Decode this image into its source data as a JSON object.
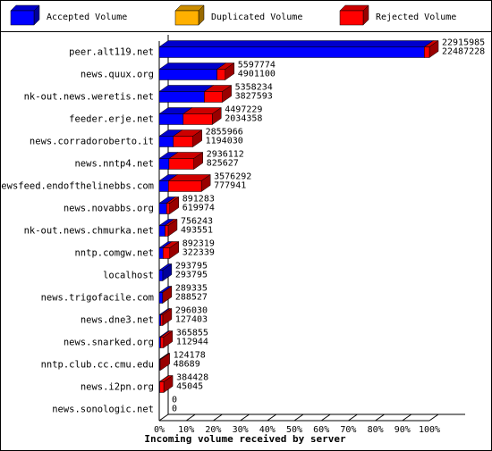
{
  "chart_data": {
    "type": "bar3d",
    "x_label": "Incoming volume received by server",
    "categories": [
      "peer.alt119.net",
      "news.quux.org",
      "nk-out.news.weretis.net",
      "feeder.erje.net",
      "news.corradoroberto.it",
      "news.nntp4.net",
      "newsfeed.endofthelinebbs.com",
      "news.novabbs.org",
      "nk-out.news.chmurka.net",
      "nntp.comgw.net",
      "localhost",
      "news.trigofacile.com",
      "news.dne3.net",
      "news.snarked.org",
      "nntp.club.cc.cmu.edu",
      "news.i2pn.org",
      "news.sonologic.net"
    ],
    "totals": [
      22915985,
      5597774,
      5358234,
      4497229,
      2855966,
      2936112,
      3576292,
      891283,
      756243,
      892319,
      293795,
      289335,
      296030,
      365855,
      124178,
      384428,
      0
    ],
    "series": [
      {
        "name": "Accepted Volume",
        "color": "#0000ff",
        "values": [
          22487228,
          4901100,
          3827593,
          2034358,
          1194030,
          825627,
          777941,
          619974,
          493551,
          322339,
          293795,
          288527,
          127403,
          112944,
          48689,
          45045,
          0
        ]
      },
      {
        "name": "Duplicated Volume",
        "color": "#ffb000",
        "values": [
          0,
          0,
          0,
          0,
          0,
          0,
          0,
          0,
          0,
          0,
          0,
          0,
          0,
          0,
          0,
          0,
          0
        ]
      },
      {
        "name": "Rejected Volume",
        "color": "#ff0000",
        "values": [
          428757,
          696674,
          1530641,
          2462871,
          1661936,
          2110485,
          2798351,
          271309,
          262692,
          569980,
          0,
          808,
          168627,
          252911,
          75489,
          339383,
          0
        ]
      }
    ],
    "xlim": [
      0,
      22915985
    ],
    "xticks": [
      {
        "value": 0,
        "label": "0%"
      },
      {
        "value": 2291598.5,
        "label": "10%"
      },
      {
        "value": 4583197,
        "label": "20%"
      },
      {
        "value": 6874795.5,
        "label": "30%"
      },
      {
        "value": 9166394,
        "label": "40%"
      },
      {
        "value": 11457992.5,
        "label": "50%"
      },
      {
        "value": 13749591,
        "label": "60%"
      },
      {
        "value": 16041189.5,
        "label": "70%"
      },
      {
        "value": 18332788,
        "label": "80%"
      },
      {
        "value": 20624386.5,
        "label": "90%"
      },
      {
        "value": 22915985,
        "label": "100%"
      }
    ]
  }
}
